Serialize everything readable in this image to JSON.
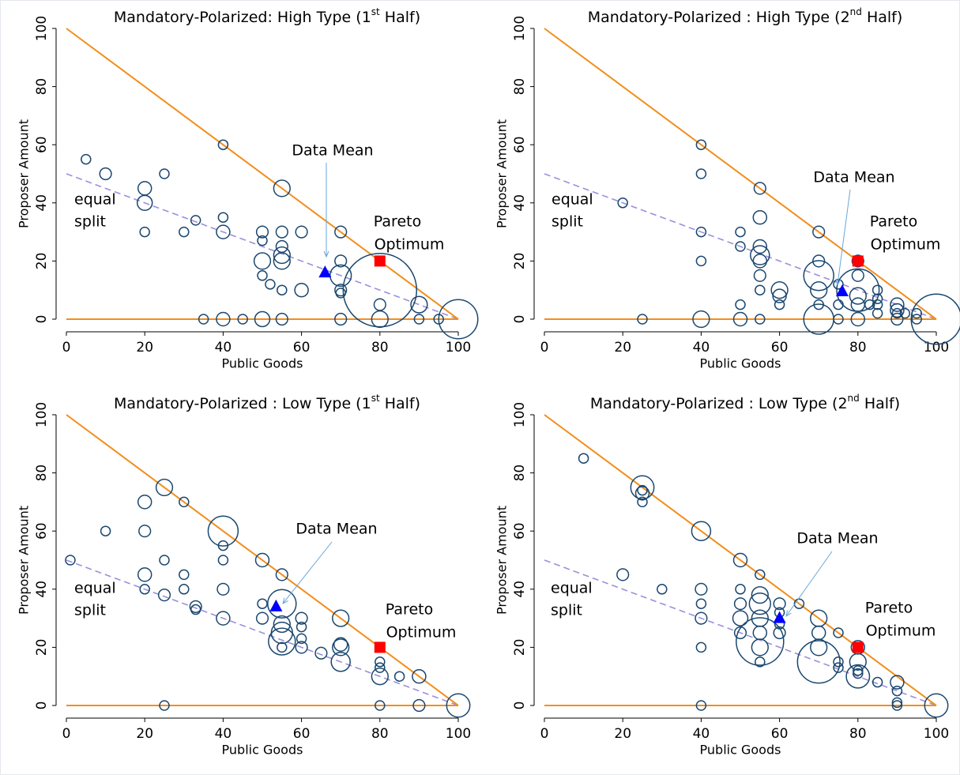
{
  "chart_data": [
    {
      "type": "scatter",
      "title": {
        "text": "Mandatory-Polarized: High Type (1",
        "sup": "st",
        "tail": " Half)"
      },
      "x_label": "Public Goods",
      "y_label": "Proposer Amount",
      "xlim": [
        0,
        100
      ],
      "ylim": [
        0,
        100
      ],
      "xticks": [
        0,
        20,
        40,
        60,
        80,
        100
      ],
      "yticks": [
        0,
        20,
        40,
        60,
        80,
        100
      ],
      "points": {
        "color": "#1a476f",
        "x": [
          5,
          10,
          20,
          20,
          20,
          25,
          33,
          30,
          40,
          40,
          40,
          35,
          40,
          45,
          50,
          55,
          50,
          50,
          50,
          50,
          52,
          55,
          55,
          55,
          55,
          55,
          55,
          60,
          60,
          70,
          70,
          70,
          70,
          70,
          70,
          80,
          80,
          80,
          90,
          90,
          95,
          100
        ],
        "y": [
          55,
          50,
          45,
          40,
          30,
          50,
          34,
          30,
          60,
          35,
          30,
          0,
          0,
          0,
          0,
          0,
          30,
          27,
          20,
          15,
          12,
          45,
          30,
          22,
          20,
          25,
          10,
          30,
          10,
          30,
          20,
          15,
          10,
          9,
          0,
          10,
          5,
          0,
          5,
          0,
          0,
          0
        ],
        "size": [
          1,
          1.5,
          2,
          2.5,
          1,
          1,
          1,
          1,
          1,
          1,
          2,
          1,
          2,
          1,
          2.5,
          1.5,
          1.5,
          1,
          3,
          1,
          1,
          3,
          1.5,
          3,
          3,
          1.5,
          1,
          1.5,
          2,
          1.5,
          1.5,
          5,
          1.5,
          1,
          1.5,
          60,
          1.5,
          3,
          3,
          1,
          1,
          17
        ]
      },
      "mean": {
        "x": 66,
        "y": 16,
        "color": "#0000ff",
        "label": "Data Mean",
        "label_color": "#1f7bc1"
      },
      "pareto": {
        "x": 80,
        "y": 20,
        "color": "#ff0000",
        "label": [
          "Pareto",
          "Optimum"
        ]
      },
      "equal_split_label": [
        "equal",
        "split"
      ],
      "budget_line": {
        "x": [
          0,
          100
        ],
        "y": [
          100,
          0
        ],
        "color": "#f28e1c"
      },
      "floor_line": {
        "x": [
          0,
          100
        ],
        "y": [
          0,
          0
        ],
        "color": "#f28e1c"
      },
      "equal_split_line": {
        "x": [
          0,
          100
        ],
        "y": [
          50,
          0
        ],
        "color": "#9c8fdc"
      }
    },
    {
      "type": "scatter",
      "title": {
        "text": "Mandatory-Polarized : High Type (2",
        "sup": "nd",
        "tail": " Half)"
      },
      "x_label": "Public Goods",
      "y_label": "Proposer Amount",
      "xlim": [
        0,
        100
      ],
      "ylim": [
        0,
        100
      ],
      "xticks": [
        0,
        20,
        40,
        60,
        80,
        100
      ],
      "yticks": [
        0,
        20,
        40,
        60,
        80,
        100
      ],
      "points": {
        "color": "#1a476f",
        "x": [
          20,
          25,
          40,
          40,
          40,
          40,
          40,
          50,
          50,
          50,
          50,
          55,
          55,
          55,
          55,
          55,
          55,
          55,
          55,
          60,
          60,
          60,
          70,
          70,
          70,
          70,
          70,
          70,
          75,
          75,
          75,
          80,
          80,
          80,
          80,
          80,
          80,
          83,
          85,
          85,
          85,
          85,
          90,
          90,
          90,
          90,
          92,
          95,
          95,
          100
        ],
        "y": [
          40,
          0,
          60,
          50,
          30,
          20,
          0,
          30,
          25,
          5,
          0,
          45,
          35,
          25,
          22,
          20,
          15,
          10,
          0,
          10,
          8,
          5,
          30,
          20,
          15,
          10,
          5,
          0,
          12,
          5,
          0,
          20,
          15,
          10,
          8,
          5,
          0,
          5,
          10,
          7,
          5,
          2,
          5,
          3,
          2,
          0,
          2,
          2,
          0,
          0
        ],
        "size": [
          1,
          1,
          1,
          1,
          1,
          1,
          3,
          1,
          1,
          1,
          2,
          1.5,
          2,
          2,
          4,
          2,
          1.5,
          1,
          1,
          3,
          2,
          1,
          1.5,
          1.5,
          10,
          3,
          1,
          10,
          1,
          1,
          1,
          1.5,
          1.5,
          20,
          3,
          2,
          2,
          1,
          1,
          1,
          1,
          1,
          2,
          2,
          1,
          1.5,
          1,
          1,
          1,
          28
        ]
      },
      "mean": {
        "x": 76,
        "y": 9.5,
        "color": "#0000ff",
        "label": "Data Mean",
        "label_color": "#1f7bc1"
      },
      "pareto": {
        "x": 80,
        "y": 20,
        "color": "#ff0000",
        "label": [
          "Pareto",
          "Optimum"
        ]
      },
      "equal_split_label": [
        "equal",
        "split"
      ],
      "budget_line": {
        "x": [
          0,
          100
        ],
        "y": [
          100,
          0
        ],
        "color": "#f28e1c"
      },
      "floor_line": {
        "x": [
          0,
          100
        ],
        "y": [
          0,
          0
        ],
        "color": "#f28e1c"
      },
      "equal_split_line": {
        "x": [
          0,
          100
        ],
        "y": [
          50,
          0
        ],
        "color": "#9c8fdc"
      }
    },
    {
      "type": "scatter",
      "title": {
        "text": "Mandatory-Polarized : Low Type (1",
        "sup": "st",
        "tail": " Half)"
      },
      "x_label": "Public Goods",
      "y_label": "Proposer Amount",
      "xlim": [
        0,
        100
      ],
      "ylim": [
        0,
        100
      ],
      "xticks": [
        0,
        20,
        40,
        60,
        80,
        100
      ],
      "yticks": [
        0,
        20,
        40,
        60,
        80,
        100
      ],
      "points": {
        "color": "#1a476f",
        "x": [
          1,
          10,
          20,
          20,
          20,
          20,
          25,
          25,
          25,
          25,
          30,
          30,
          30,
          33,
          33,
          40,
          40,
          40,
          40,
          40,
          50,
          50,
          50,
          55,
          55,
          55,
          55,
          55,
          55,
          60,
          60,
          60,
          60,
          65,
          70,
          70,
          70,
          70,
          80,
          80,
          80,
          80,
          85,
          90,
          90,
          100
        ],
        "y": [
          50,
          60,
          70,
          60,
          45,
          40,
          75,
          50,
          38,
          0,
          70,
          45,
          40,
          34,
          33,
          60,
          55,
          50,
          40,
          30,
          50,
          35,
          30,
          45,
          35,
          28,
          25,
          22,
          20,
          30,
          27,
          23,
          20,
          18,
          30,
          21,
          20,
          15,
          15,
          13,
          10,
          0,
          10,
          10,
          0,
          0
        ],
        "size": [
          1,
          1,
          2,
          1.5,
          2,
          1,
          3,
          1,
          1.5,
          1,
          1,
          1,
          1,
          1.5,
          1,
          10,
          1,
          1,
          1.5,
          2,
          2,
          1,
          1.5,
          1.5,
          9,
          3,
          5,
          8,
          1,
          1.5,
          1,
          1,
          1.5,
          1.5,
          3,
          2,
          3,
          4,
          1,
          1,
          3,
          1,
          1,
          2,
          1.5,
          6
        ]
      },
      "mean": {
        "x": 53.5,
        "y": 34,
        "color": "#0000ff",
        "label": "Data Mean",
        "label_color": "#1f7bc1"
      },
      "pareto": {
        "x": 80,
        "y": 20,
        "color": "#ff0000",
        "label": [
          "Pareto",
          "Optimum"
        ]
      },
      "equal_split_label": [
        "equal",
        "split"
      ],
      "budget_line": {
        "x": [
          0,
          100
        ],
        "y": [
          100,
          0
        ],
        "color": "#f28e1c"
      },
      "floor_line": {
        "x": [
          0,
          100
        ],
        "y": [
          0,
          0
        ],
        "color": "#f28e1c"
      },
      "equal_split_line": {
        "x": [
          0,
          100
        ],
        "y": [
          50,
          0
        ],
        "color": "#9c8fdc"
      }
    },
    {
      "type": "scatter",
      "title": {
        "text": "Mandatory-Polarized : Low Type (2",
        "sup": "nd",
        "tail": " Half)"
      },
      "x_label": "Public Goods",
      "y_label": "Proposer Amount",
      "xlim": [
        0,
        100
      ],
      "ylim": [
        0,
        100
      ],
      "xticks": [
        0,
        20,
        40,
        60,
        80,
        100
      ],
      "yticks": [
        0,
        20,
        40,
        60,
        80,
        100
      ],
      "points": {
        "color": "#1a476f",
        "x": [
          10,
          20,
          25,
          25,
          25,
          25,
          30,
          40,
          40,
          40,
          40,
          40,
          40,
          50,
          50,
          50,
          50,
          50,
          55,
          55,
          55,
          55,
          55,
          55,
          55,
          55,
          60,
          60,
          60,
          60,
          65,
          70,
          70,
          70,
          70,
          75,
          75,
          75,
          80,
          80,
          80,
          80,
          80,
          85,
          90,
          90,
          90,
          90,
          100
        ],
        "y": [
          85,
          45,
          75,
          73,
          70,
          74,
          40,
          60,
          40,
          35,
          30,
          20,
          0,
          50,
          40,
          35,
          30,
          25,
          45,
          38,
          35,
          30,
          25,
          22,
          20,
          15,
          35,
          32,
          28,
          25,
          35,
          30,
          25,
          20,
          15,
          25,
          15,
          13,
          20,
          15,
          12,
          11,
          10,
          8,
          8,
          5,
          1,
          0,
          0
        ],
        "size": [
          1,
          1.5,
          6,
          2,
          1,
          1,
          1,
          4,
          1.5,
          1,
          1.5,
          1,
          1,
          2,
          1,
          1.5,
          2.5,
          1.5,
          1,
          3,
          5,
          3,
          2,
          25,
          3,
          1,
          1.5,
          1,
          1,
          1.5,
          1,
          3,
          2,
          3,
          20,
          1,
          1,
          1,
          2,
          3,
          1,
          1,
          6,
          1,
          2,
          1,
          1,
          1,
          6
        ]
      },
      "mean": {
        "x": 60,
        "y": 30,
        "color": "#0000ff",
        "label": "Data Mean",
        "label_color": "#1f7bc1"
      },
      "pareto": {
        "x": 80,
        "y": 20,
        "color": "#ff0000",
        "label": [
          "Pareto",
          "Optimum"
        ]
      },
      "equal_split_label": [
        "equal",
        "split"
      ],
      "budget_line": {
        "x": [
          0,
          100
        ],
        "y": [
          100,
          0
        ],
        "color": "#f28e1c"
      },
      "floor_line": {
        "x": [
          0,
          100
        ],
        "y": [
          0,
          0
        ],
        "color": "#f28e1c"
      },
      "equal_split_line": {
        "x": [
          0,
          100
        ],
        "y": [
          50,
          0
        ],
        "color": "#9c8fdc"
      }
    }
  ]
}
